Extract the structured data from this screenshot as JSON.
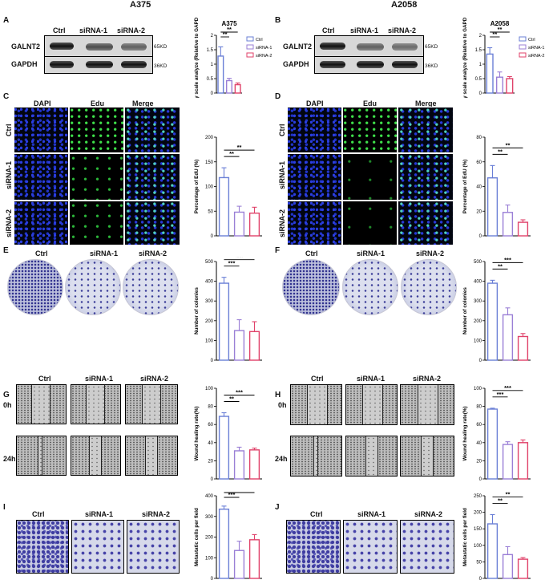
{
  "columns": {
    "left": "A375",
    "right": "A2058"
  },
  "panels": {
    "A": "A",
    "B": "B",
    "C": "C",
    "D": "D",
    "E": "E",
    "F": "F",
    "G": "G",
    "H": "H",
    "I": "I",
    "J": "J"
  },
  "wb": {
    "lanes": [
      "Ctrl",
      "siRNA-1",
      "siRNA-2"
    ],
    "target": "GALNT2",
    "control": "GAPDH",
    "target_size": "65KD",
    "control_size": "36KD"
  },
  "if": {
    "channels": [
      "DAPI",
      "Edu",
      "Merge"
    ],
    "rows": [
      "Ctrl",
      "siRNA-1",
      "siRNA-2"
    ]
  },
  "colony": {
    "labels": [
      "Ctrl",
      "siRNA-1",
      "siRNA-2"
    ]
  },
  "wound": {
    "labels": [
      "Ctrl",
      "siRNA-1",
      "siRNA-2"
    ],
    "times": [
      "0h",
      "24h"
    ]
  },
  "transwell": {
    "labels": [
      "Ctrl",
      "siRNA-1",
      "siRNA-2"
    ]
  },
  "colors": {
    "ctrl": "#6a7fd6",
    "sirna1": "#9a7fd6",
    "sirna2": "#e0426a"
  },
  "legend": [
    "Ctrl",
    "siRNA-1",
    "siRNA-2"
  ],
  "chart_data": [
    {
      "panel": "A",
      "type": "bar",
      "title": "A375",
      "categories": [
        "Ctrl",
        "siRNA-1",
        "siRNA-2"
      ],
      "values": [
        1.28,
        0.43,
        0.29
      ],
      "errors": [
        0.32,
        0.08,
        0.06
      ],
      "ylabel": "WB gray scale analyze (Relative to GAPDH)",
      "ylim": [
        0,
        2.0
      ],
      "yticks": [
        0,
        0.5,
        1.0,
        1.5,
        2.0
      ],
      "sig": [
        "**",
        "**"
      ],
      "legend": true
    },
    {
      "panel": "B",
      "type": "bar",
      "title": "A2058",
      "categories": [
        "Ctrl",
        "siRNA-1",
        "siRNA-2"
      ],
      "values": [
        1.35,
        0.55,
        0.5
      ],
      "errors": [
        0.22,
        0.18,
        0.07
      ],
      "ylabel": "WB gray scale analyze (Relative to GAPDH)",
      "ylim": [
        0,
        2.0
      ],
      "yticks": [
        0,
        0.5,
        1.0,
        1.5,
        2.0
      ],
      "sig": [
        "**",
        "**"
      ],
      "legend": true
    },
    {
      "panel": "C",
      "type": "bar",
      "title": "",
      "categories": [
        "Ctrl",
        "siRNA-1",
        "siRNA-2"
      ],
      "values": [
        118,
        48,
        46
      ],
      "errors": [
        20,
        12,
        12
      ],
      "ylabel": "Percentage of EdU (%)",
      "ylim": [
        0,
        200
      ],
      "yticks": [
        0,
        50,
        100,
        150,
        200
      ],
      "sig": [
        "**",
        "**"
      ],
      "legend": false
    },
    {
      "panel": "D",
      "type": "bar",
      "title": "",
      "categories": [
        "Ctrl",
        "siRNA-1",
        "siRNA-2"
      ],
      "values": [
        47,
        19,
        11
      ],
      "errors": [
        10,
        6,
        2
      ],
      "ylabel": "Percentage of EdU (%)",
      "ylim": [
        0,
        80
      ],
      "yticks": [
        0,
        20,
        40,
        60,
        80
      ],
      "sig": [
        "**",
        "**"
      ],
      "legend": false
    },
    {
      "panel": "E",
      "type": "bar",
      "title": "",
      "categories": [
        "Ctrl",
        "siRNA-1",
        "siRNA-2"
      ],
      "values": [
        390,
        150,
        145
      ],
      "errors": [
        30,
        55,
        50
      ],
      "ylabel": "Number of colonies",
      "ylim": [
        0,
        500
      ],
      "yticks": [
        0,
        100,
        200,
        300,
        400,
        500
      ],
      "sig": [
        "***",
        "***"
      ],
      "legend": false
    },
    {
      "panel": "F",
      "type": "bar",
      "title": "",
      "categories": [
        "Ctrl",
        "siRNA-1",
        "siRNA-2"
      ],
      "values": [
        390,
        230,
        120
      ],
      "errors": [
        15,
        35,
        15
      ],
      "ylabel": "Number of colonies",
      "ylim": [
        0,
        500
      ],
      "yticks": [
        0,
        100,
        200,
        300,
        400,
        500
      ],
      "sig": [
        "**",
        "***"
      ],
      "legend": false
    },
    {
      "panel": "G",
      "type": "bar",
      "title": "",
      "categories": [
        "Ctrl",
        "siRNA-1",
        "siRNA-2"
      ],
      "values": [
        69,
        31,
        32
      ],
      "errors": [
        4,
        4,
        2
      ],
      "ylabel": "Wound healing rate(%)",
      "ylim": [
        0,
        100
      ],
      "yticks": [
        0,
        20,
        40,
        60,
        80,
        100
      ],
      "sig": [
        "**",
        "***"
      ],
      "legend": false
    },
    {
      "panel": "H",
      "type": "bar",
      "title": "",
      "categories": [
        "Ctrl",
        "siRNA-1",
        "siRNA-2"
      ],
      "values": [
        77,
        38,
        40
      ],
      "errors": [
        1,
        3,
        3
      ],
      "ylabel": "Wound healing rate(%)",
      "ylim": [
        0,
        100
      ],
      "yticks": [
        0,
        20,
        40,
        60,
        80,
        100
      ],
      "sig": [
        "***",
        "***"
      ],
      "legend": false
    },
    {
      "panel": "I",
      "type": "bar",
      "title": "",
      "categories": [
        "Ctrl",
        "siRNA-1",
        "siRNA-2"
      ],
      "values": [
        335,
        135,
        187
      ],
      "errors": [
        15,
        45,
        25
      ],
      "ylabel": "Metastatic cells per field",
      "ylim": [
        0,
        400
      ],
      "yticks": [
        0,
        100,
        200,
        300,
        400
      ],
      "sig": [
        "***",
        "**"
      ],
      "legend": false
    },
    {
      "panel": "J",
      "type": "bar",
      "title": "",
      "categories": [
        "Ctrl",
        "siRNA-1",
        "siRNA-2"
      ],
      "values": [
        165,
        72,
        58
      ],
      "errors": [
        28,
        24,
        5
      ],
      "ylabel": "Metastatic cells per field",
      "ylim": [
        0,
        250
      ],
      "yticks": [
        0,
        50,
        100,
        150,
        200,
        250
      ],
      "sig": [
        "**",
        "**"
      ],
      "legend": false
    }
  ]
}
